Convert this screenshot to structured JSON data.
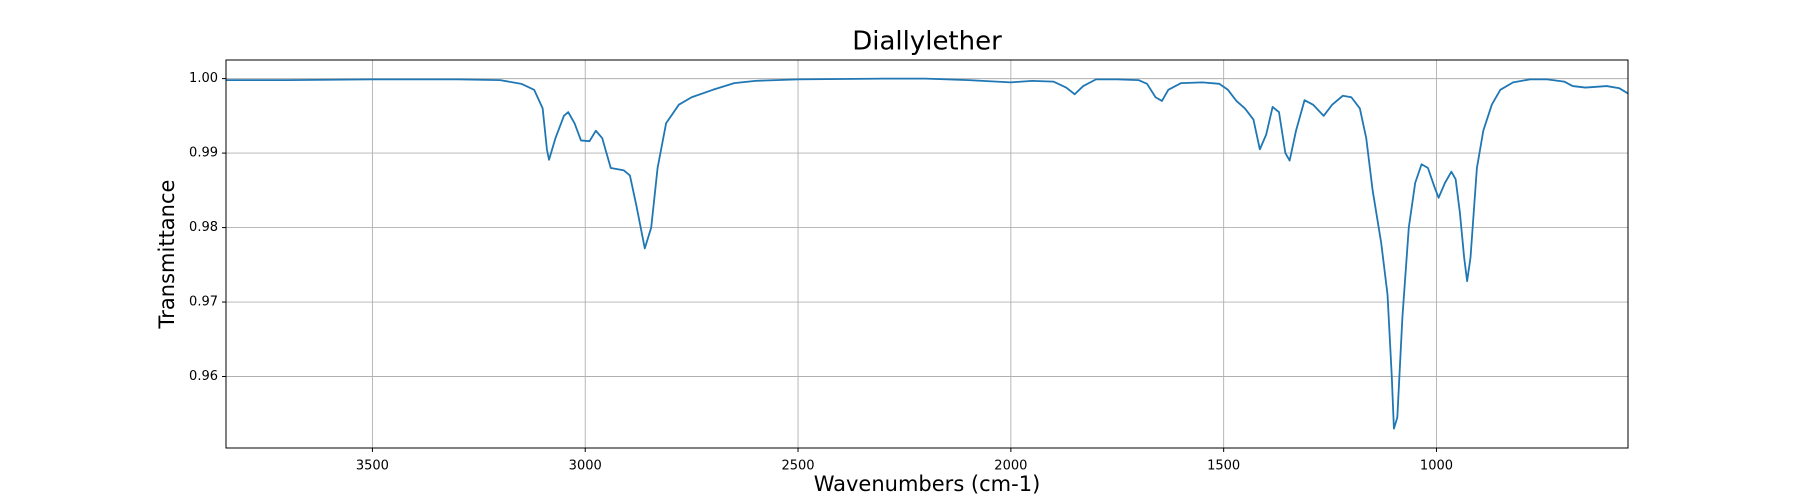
{
  "chart_data": {
    "type": "line",
    "title": "Diallylether",
    "x_label": "Wavenumbers (cm-1)",
    "y_label": "Transmittance",
    "x": [
      3844,
      3700,
      3500,
      3300,
      3200,
      3150,
      3120,
      3100,
      3090,
      3085,
      3070,
      3050,
      3040,
      3025,
      3010,
      2990,
      2975,
      2960,
      2940,
      2910,
      2895,
      2880,
      2860,
      2845,
      2830,
      2810,
      2780,
      2750,
      2700,
      2650,
      2600,
      2500,
      2300,
      2200,
      2100,
      2000,
      1950,
      1900,
      1870,
      1850,
      1830,
      1800,
      1750,
      1700,
      1680,
      1660,
      1645,
      1630,
      1600,
      1550,
      1510,
      1490,
      1470,
      1450,
      1430,
      1415,
      1400,
      1385,
      1370,
      1355,
      1345,
      1330,
      1310,
      1290,
      1265,
      1245,
      1220,
      1200,
      1180,
      1165,
      1150,
      1130,
      1115,
      1105,
      1100,
      1092,
      1080,
      1065,
      1050,
      1035,
      1020,
      1005,
      995,
      980,
      965,
      955,
      945,
      935,
      928,
      920,
      905,
      890,
      870,
      850,
      820,
      780,
      740,
      700,
      680,
      650,
      600,
      570,
      550
    ],
    "values": [
      0.9998,
      0.9998,
      0.9999,
      0.9999,
      0.9998,
      0.9993,
      0.9985,
      0.996,
      0.9905,
      0.9891,
      0.992,
      0.995,
      0.9955,
      0.994,
      0.9917,
      0.9916,
      0.993,
      0.992,
      0.988,
      0.9877,
      0.987,
      0.983,
      0.9772,
      0.98,
      0.988,
      0.994,
      0.9965,
      0.9975,
      0.9985,
      0.9994,
      0.9997,
      0.9999,
      1.0,
      1.0,
      0.9998,
      0.9995,
      0.9997,
      0.9996,
      0.9988,
      0.9979,
      0.999,
      0.9999,
      0.9999,
      0.9998,
      0.9993,
      0.9975,
      0.997,
      0.9985,
      0.9994,
      0.9995,
      0.9993,
      0.9985,
      0.997,
      0.996,
      0.9945,
      0.9905,
      0.9925,
      0.9962,
      0.9955,
      0.99,
      0.989,
      0.993,
      0.9971,
      0.9965,
      0.995,
      0.9965,
      0.9977,
      0.9975,
      0.996,
      0.992,
      0.985,
      0.978,
      0.971,
      0.96,
      0.953,
      0.9545,
      0.968,
      0.98,
      0.986,
      0.9885,
      0.988,
      0.9855,
      0.984,
      0.986,
      0.9875,
      0.9865,
      0.982,
      0.976,
      0.9728,
      0.976,
      0.988,
      0.993,
      0.9965,
      0.9985,
      0.9995,
      0.9999,
      0.9999,
      0.9996,
      0.999,
      0.9988,
      0.999,
      0.9987,
      0.998
    ],
    "color": "#1f77b4",
    "xlim": [
      3844,
      550
    ],
    "xticks": [
      3500,
      3000,
      2500,
      2000,
      1500,
      1000
    ],
    "ylim": [
      0.9504,
      1.0025
    ],
    "yticks": [
      0.96,
      0.97,
      0.98,
      0.99,
      {
        "value": 1,
        "label": "1.00"
      }
    ],
    "grid": true
  }
}
